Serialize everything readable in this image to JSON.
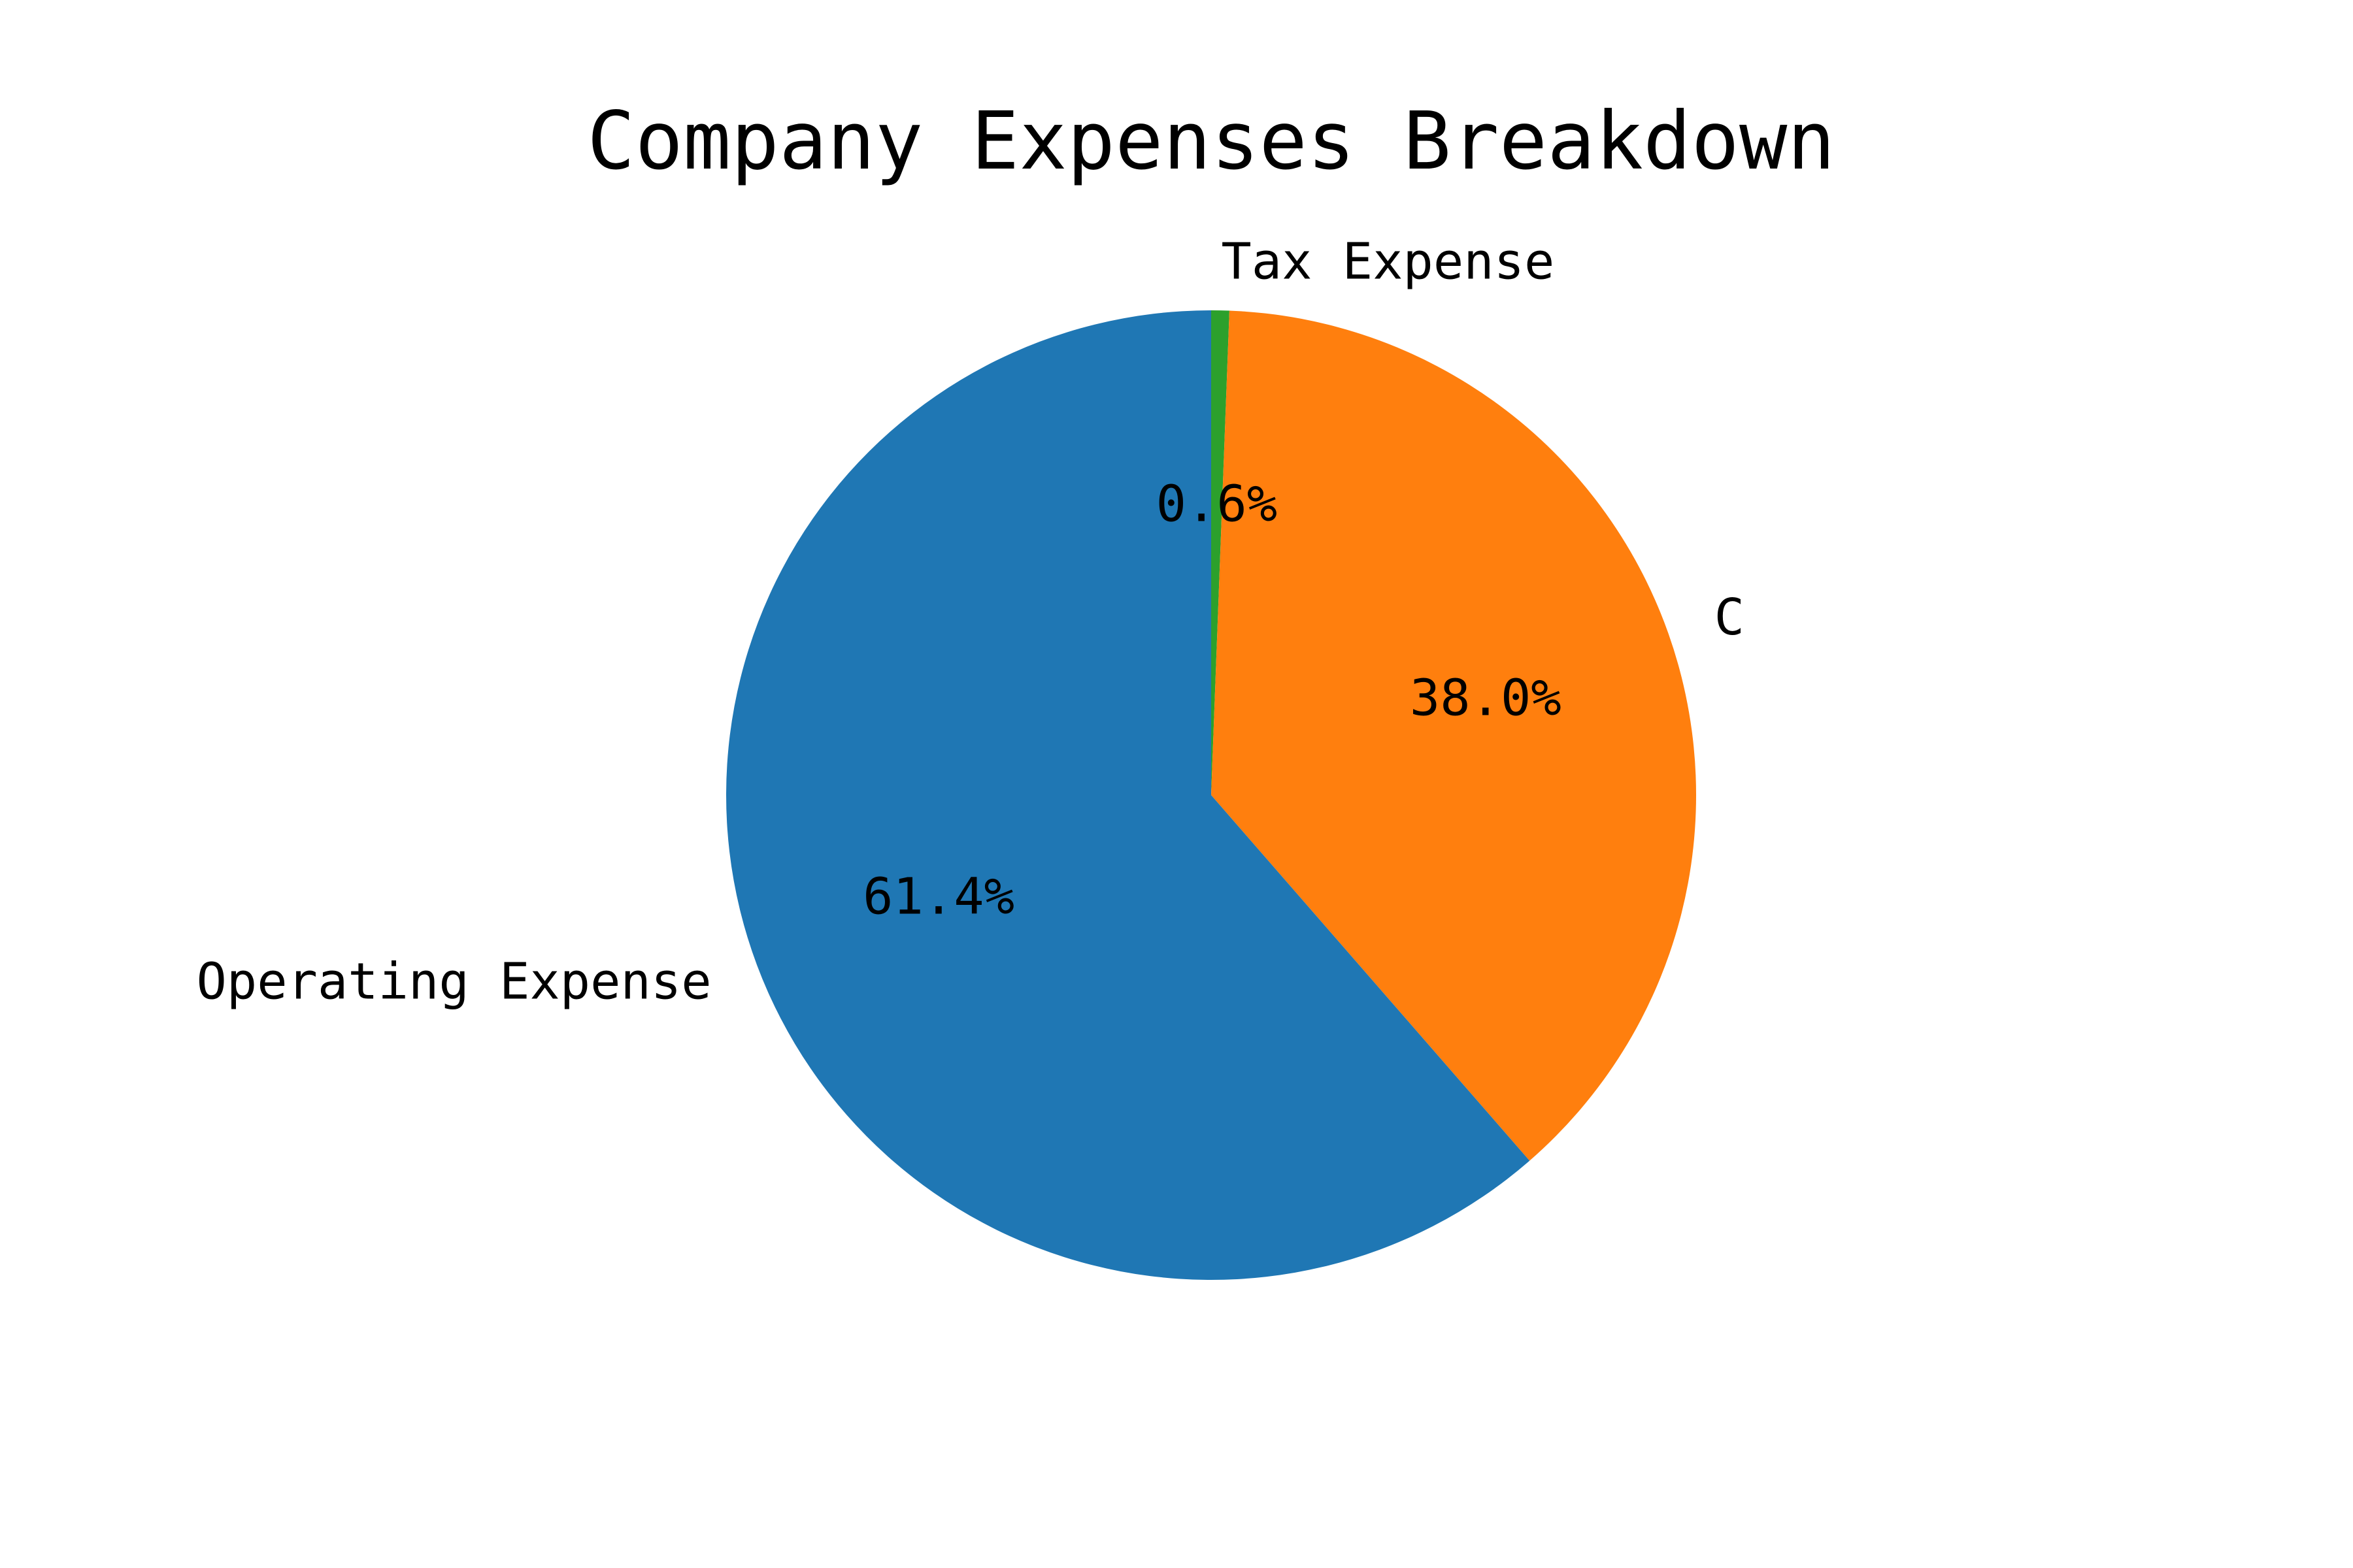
{
  "chart_data": {
    "type": "pie",
    "title": "Company Expenses Breakdown",
    "start_angle_deg": 90,
    "direction": "clockwise",
    "slices": [
      {
        "label": "Tax Expense",
        "value": 0.6,
        "pct_label": "0.6%",
        "color": "#2ca02c"
      },
      {
        "label": "C",
        "value": 38.0,
        "pct_label": "38.0%",
        "color": "#ff7f0e"
      },
      {
        "label": "Operating Expense",
        "value": 61.4,
        "pct_label": "61.4%",
        "color": "#1f77b4"
      }
    ]
  }
}
